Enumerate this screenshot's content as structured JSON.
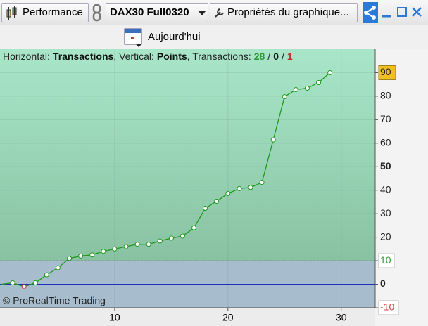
{
  "toolbar": {
    "performance": "Performance",
    "instrument": "DAX30 Full0320",
    "properties": "Propriétés du graphique...",
    "today": "Aujourd'hui"
  },
  "chart_data": {
    "type": "line",
    "info": {
      "horizontal_label": "Horizontal:",
      "horizontal": "Transactions",
      "vertical_label": ", Vertical:",
      "vertical": "Points",
      "count_label": ", Transactions:",
      "winners": 28,
      "separator": "/",
      "neutral": 0,
      "losers": 1
    },
    "watermark": "© ProRealTime Trading",
    "x": [
      0,
      1,
      2,
      3,
      4,
      5,
      6,
      7,
      8,
      9,
      10,
      11,
      12,
      13,
      14,
      15,
      16,
      17,
      18,
      19,
      20,
      21,
      22,
      23,
      24,
      25,
      26,
      27,
      28,
      29
    ],
    "series": [
      {
        "color": "#1e9a1e",
        "negative_color": "#cc3333",
        "values": [
          0,
          0.6,
          -1,
          0.6,
          4,
          7,
          11,
          12,
          12.5,
          14,
          15,
          16,
          17,
          17,
          18.4,
          19.6,
          20.5,
          24,
          32.3,
          35.3,
          38.6,
          40.7,
          41.2,
          43.3,
          61.4,
          79.8,
          82.8,
          83.4,
          85.8,
          90
        ]
      }
    ],
    "xlim": [
      0,
      33
    ],
    "xticks": [
      10,
      20,
      30
    ],
    "ylim": [
      -10,
      100
    ],
    "yticks": [
      -10,
      0,
      10,
      20,
      30,
      40,
      50,
      60,
      70,
      80,
      90
    ],
    "zone_split": 10,
    "zero_line_color": "#2233cc",
    "grid": true
  }
}
